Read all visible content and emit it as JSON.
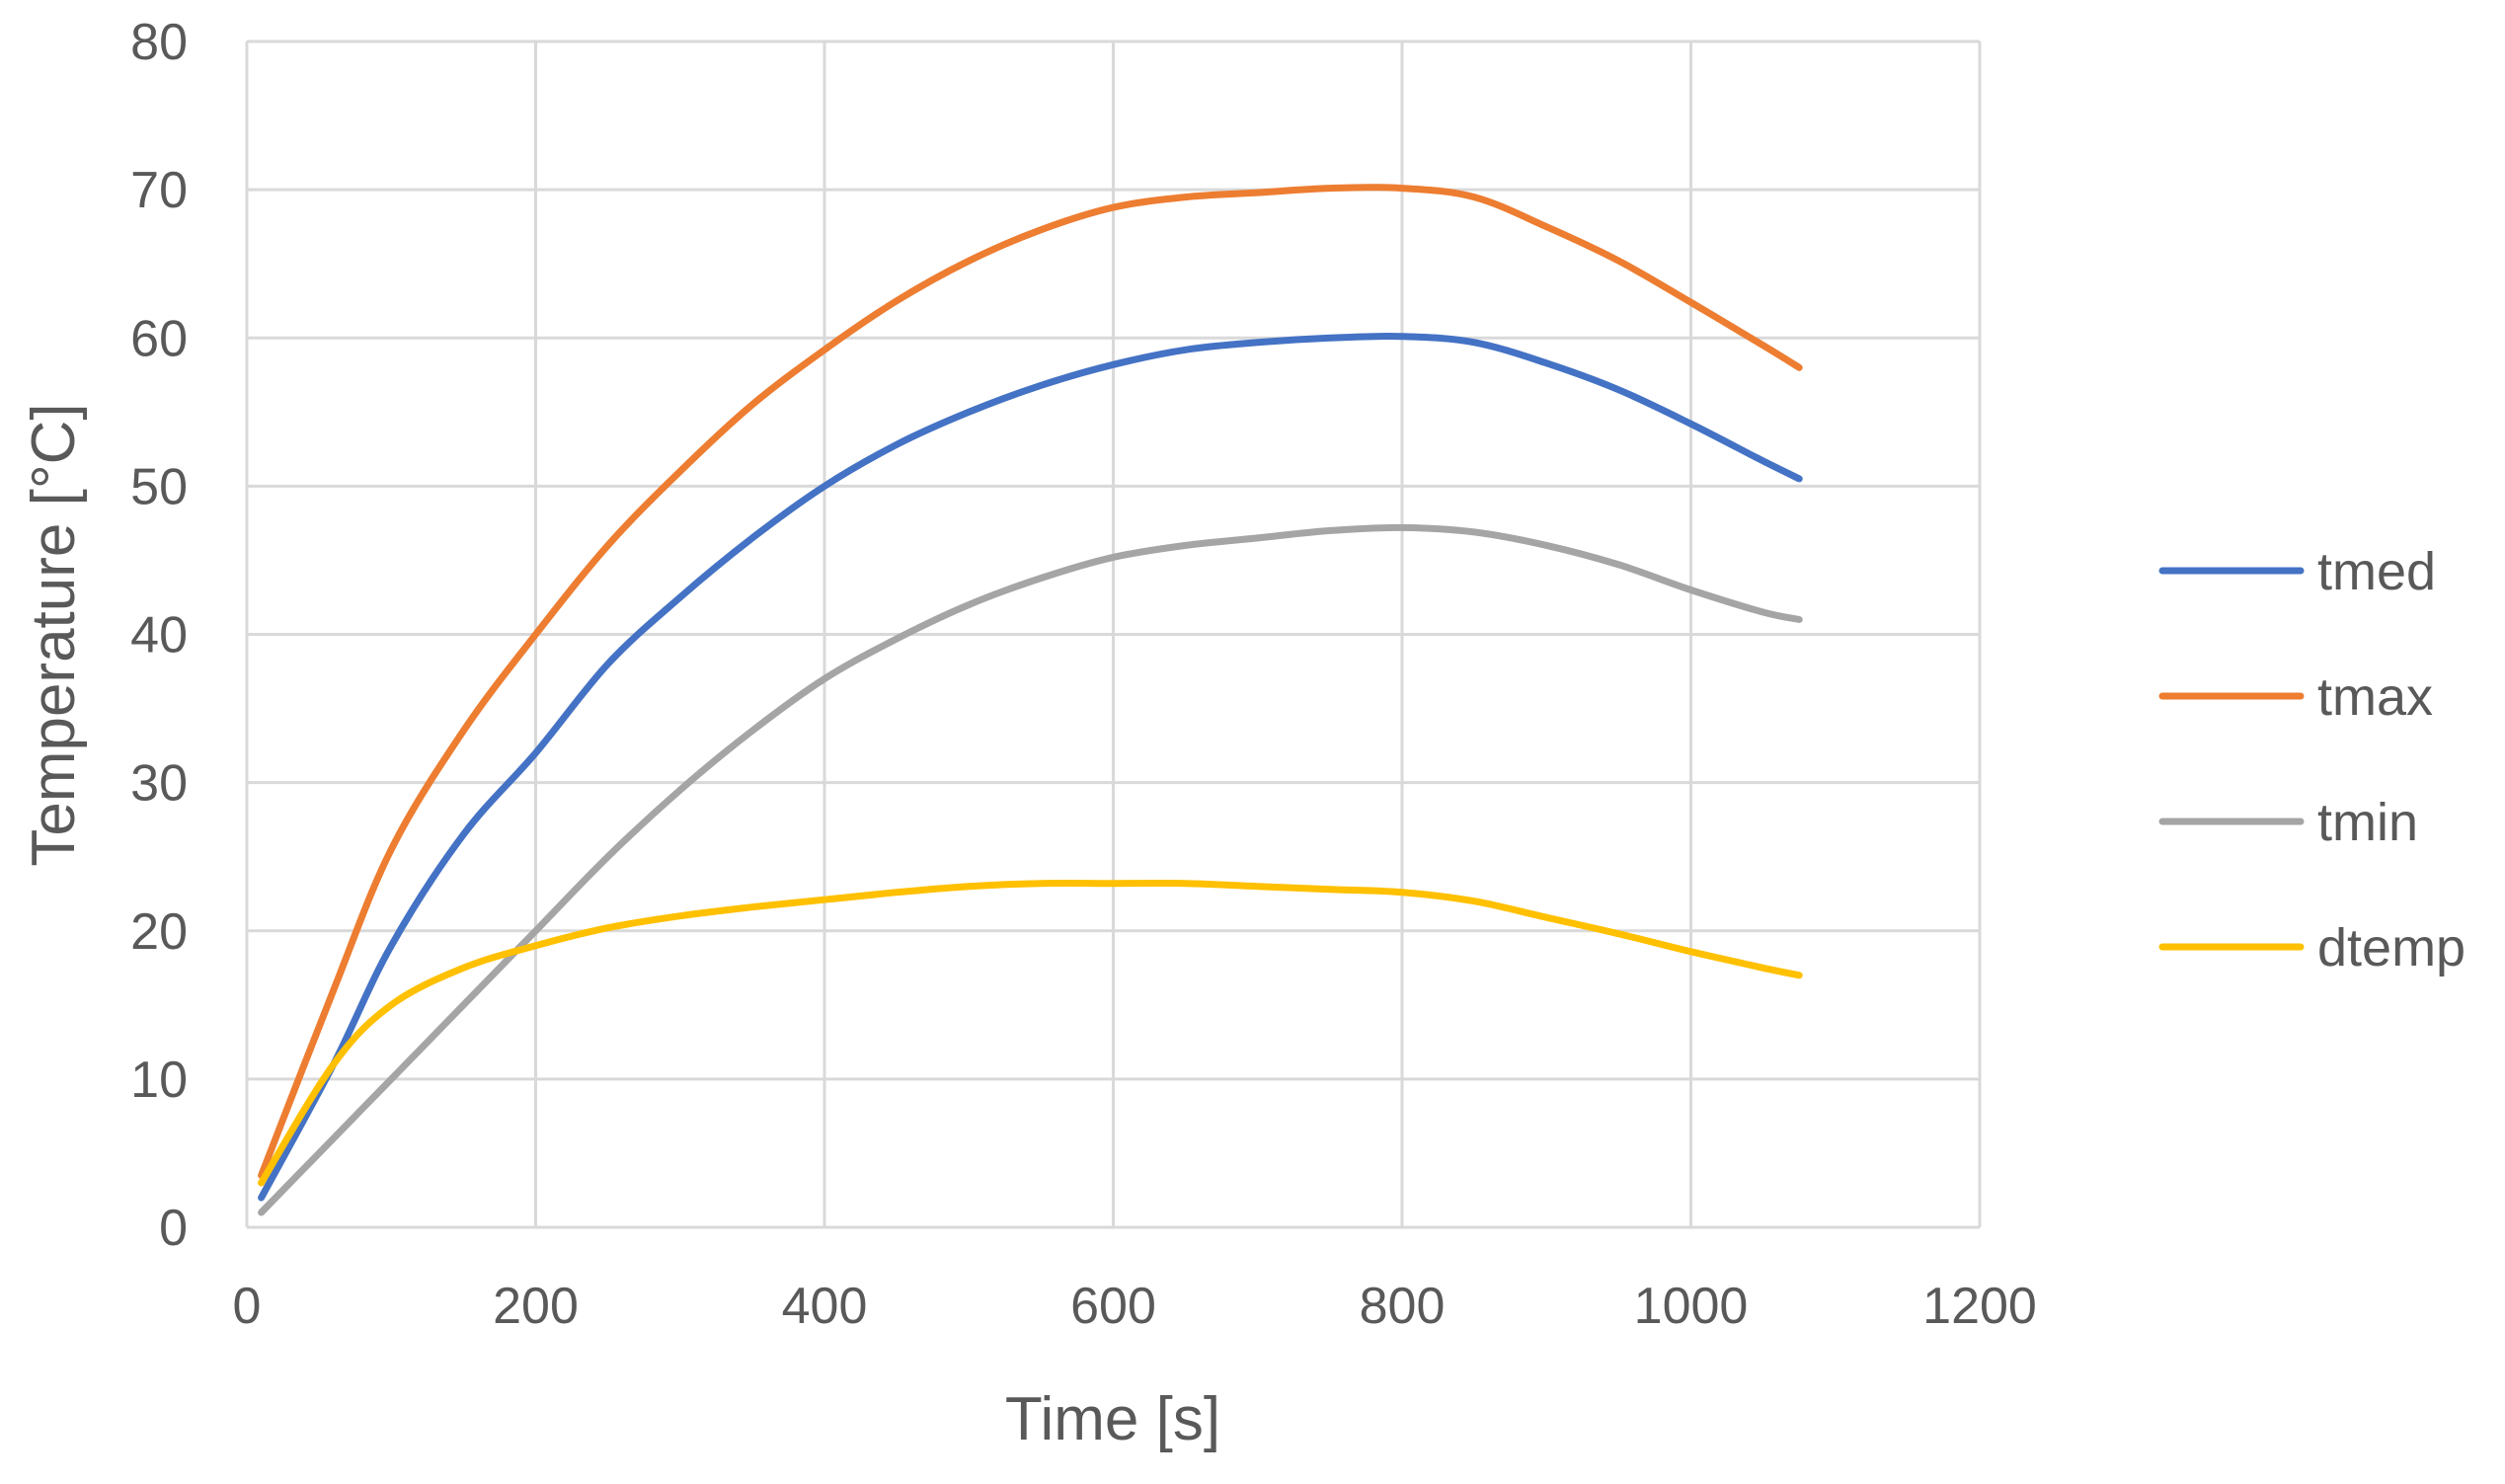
{
  "chart_data": {
    "type": "line",
    "title": "",
    "xlabel": "Time [s]",
    "ylabel": "Temperature [°C]",
    "xlim": [
      0,
      1200
    ],
    "ylim": [
      0,
      80
    ],
    "xticks": [
      0,
      200,
      400,
      600,
      800,
      1000,
      1200
    ],
    "yticks": [
      0,
      10,
      20,
      30,
      40,
      50,
      60,
      70,
      80
    ],
    "grid": true,
    "legend_position": "right",
    "x": [
      10,
      60,
      100,
      150,
      200,
      250,
      300,
      350,
      400,
      450,
      500,
      550,
      600,
      650,
      700,
      750,
      800,
      850,
      900,
      950,
      1000,
      1050,
      1075
    ],
    "series": [
      {
        "name": "tmed",
        "color": "#4472C4",
        "values": [
          2,
          11,
          19,
          26.5,
          32,
          38,
          42.5,
          46.5,
          50,
          52.8,
          55,
          56.8,
          58.2,
          59.2,
          59.7,
          60,
          60.1,
          59.7,
          58.3,
          56.5,
          54.2,
          51.7,
          50.5
        ]
      },
      {
        "name": "tmax",
        "color": "#ED7D31",
        "values": [
          3.5,
          16,
          25.5,
          33.5,
          40,
          46,
          51,
          55.5,
          59.2,
          62.5,
          65.2,
          67.3,
          68.8,
          69.5,
          69.8,
          70.1,
          70.1,
          69.5,
          67.5,
          65.2,
          62.4,
          59.5,
          58
        ]
      },
      {
        "name": "tmin",
        "color": "#A5A5A5",
        "values": [
          1,
          6,
          10,
          15,
          20,
          25,
          29.5,
          33.5,
          37,
          39.7,
          42,
          43.8,
          45.2,
          46,
          46.5,
          47,
          47.2,
          46.9,
          46,
          44.7,
          43,
          41.5,
          41
        ]
      },
      {
        "name": "dtemp",
        "color": "#FFC000",
        "values": [
          3,
          11,
          15,
          17.5,
          19,
          20.2,
          21,
          21.6,
          22.1,
          22.6,
          23,
          23.2,
          23.2,
          23.2,
          23,
          22.8,
          22.6,
          22,
          20.9,
          19.8,
          18.6,
          17.5,
          17
        ]
      }
    ]
  }
}
